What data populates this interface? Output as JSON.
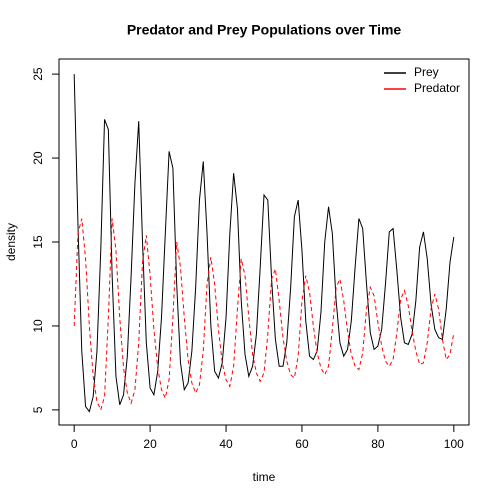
{
  "chart_data": {
    "type": "line",
    "title": "Predator and Prey Populations over Time",
    "x_label": "time",
    "y_label": "density",
    "x": [
      0,
      1,
      2,
      3,
      4,
      5,
      6,
      7,
      8,
      9,
      10,
      11,
      12,
      13,
      14,
      15,
      16,
      17,
      18,
      19,
      20,
      21,
      22,
      23,
      24,
      25,
      26,
      27,
      28,
      29,
      30,
      31,
      32,
      33,
      34,
      35,
      36,
      37,
      38,
      39,
      40,
      41,
      42,
      43,
      44,
      45,
      46,
      47,
      48,
      49,
      50,
      51,
      52,
      53,
      54,
      55,
      56,
      57,
      58,
      59,
      60,
      61,
      62,
      63,
      64,
      65,
      66,
      67,
      68,
      69,
      70,
      71,
      72,
      73,
      74,
      75,
      76,
      77,
      78,
      79,
      80,
      81,
      82,
      83,
      84,
      85,
      86,
      87,
      88,
      89,
      90,
      91,
      92,
      93,
      94,
      95,
      96,
      97,
      98,
      99,
      100
    ],
    "series": [
      {
        "name": "Prey",
        "color": "#000000",
        "dash": "solid",
        "values": [
          25,
          16,
          8.5,
          5.2,
          4.9,
          5.8,
          8.5,
          14.5,
          22.3,
          21.7,
          13,
          7,
          5.3,
          5.9,
          8.2,
          13,
          18.5,
          22.2,
          15,
          9,
          6.3,
          5.9,
          7.3,
          10.5,
          15.5,
          20.4,
          19.4,
          12.5,
          7.8,
          6.2,
          6.6,
          8.5,
          12.3,
          17.5,
          19.8,
          15.5,
          10,
          7.3,
          6.9,
          7.8,
          10.5,
          15.5,
          19.1,
          17,
          11.5,
          8.3,
          7.0,
          7.6,
          9.5,
          13.5,
          17.8,
          17.5,
          12.8,
          9.2,
          7.6,
          7.6,
          9,
          12.2,
          16.5,
          17.5,
          14.5,
          10.3,
          8.2,
          8.0,
          8.5,
          10.8,
          15,
          17.1,
          15.5,
          11.5,
          9,
          8.2,
          8.6,
          10.3,
          13.5,
          16.4,
          15.8,
          12.5,
          9.6,
          8.6,
          8.8,
          9.8,
          12.5,
          15.6,
          15.8,
          13.3,
          10.5,
          9,
          8.9,
          9.5,
          11.5,
          14.7,
          15.6,
          14,
          11.3,
          9.8,
          9.3,
          9.2,
          11,
          13.8,
          15.3
        ]
      },
      {
        "name": "Predator",
        "color": "#ff0000",
        "dash": "dashed",
        "values": [
          10,
          15.5,
          16.4,
          14,
          10,
          7,
          5.5,
          5.0,
          5.8,
          10.5,
          16.4,
          14.5,
          10.5,
          7.5,
          6,
          5.4,
          6.2,
          9,
          13.8,
          15.4,
          13,
          9.8,
          7.5,
          6.2,
          5.7,
          6.8,
          10.5,
          15.0,
          13.5,
          10.5,
          8,
          6.6,
          6.0,
          6.5,
          8.5,
          12.5,
          14.1,
          12.5,
          9.8,
          7.8,
          6.8,
          6.4,
          7.6,
          11,
          14.0,
          13,
          10.5,
          8.3,
          7.2,
          6.7,
          7.2,
          9.5,
          12.8,
          13.4,
          11.5,
          9.3,
          7.9,
          7.1,
          6.9,
          8.2,
          11.5,
          13.0,
          12,
          10,
          8.4,
          7.5,
          7.1,
          7.6,
          9.8,
          12.3,
          12.8,
          11.5,
          9.7,
          8.3,
          7.6,
          7.4,
          8.4,
          11,
          12.3,
          11.8,
          10.2,
          8.8,
          7.9,
          7.6,
          8,
          9.6,
          11.6,
          12.1,
          11.2,
          9.7,
          8.5,
          7.7,
          7.8,
          9,
          11,
          11.9,
          11.0,
          9.2,
          8.0,
          8.3,
          9.6
        ]
      }
    ],
    "xlim": [
      -4,
      104
    ],
    "ylim": [
      4.1,
      25.9
    ],
    "xticks": [
      0,
      20,
      40,
      60,
      80,
      100
    ],
    "yticks": [
      5,
      10,
      15,
      20,
      25
    ],
    "legend": "top-right",
    "grid": false
  }
}
